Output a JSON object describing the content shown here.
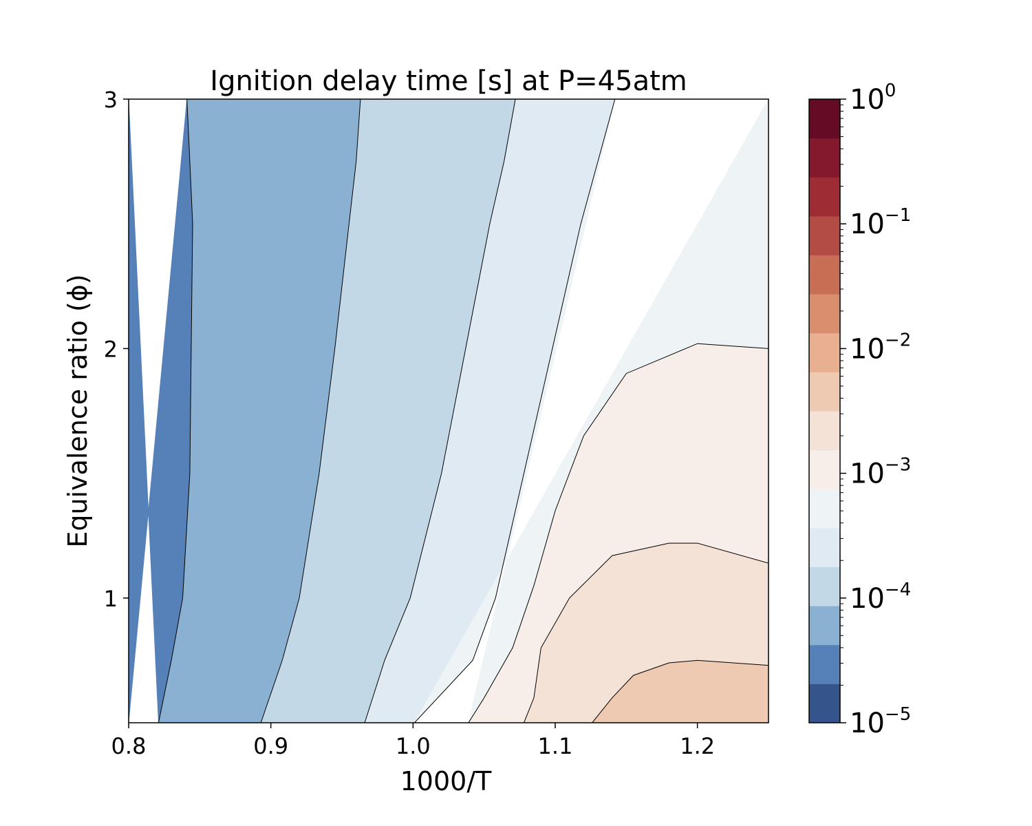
{
  "chart_data": {
    "type": "contour",
    "title": "Ignition delay time [s] at P=45atm",
    "xlabel": "1000/T",
    "ylabel": "Equivalence ratio (ϕ)",
    "xlim": [
      0.8,
      1.25
    ],
    "ylim": [
      0.5,
      3.0
    ],
    "x_ticks": [
      0.8,
      0.9,
      1.0,
      1.1,
      1.2
    ],
    "x_tick_labels": [
      "0.8",
      "0.9",
      "1.0",
      "1.1",
      "1.2"
    ],
    "y_ticks": [
      1,
      2,
      3
    ],
    "y_tick_labels": [
      "1",
      "2",
      "3"
    ],
    "colorbar": {
      "scale": "log",
      "range": [
        1e-05,
        1
      ],
      "levels": [
        1e-05,
        2.15e-05,
        4.64e-05,
        0.0001,
        0.000215,
        0.000464,
        0.001,
        0.00215,
        0.00464,
        0.01,
        0.0215,
        0.0464,
        0.1,
        0.215,
        0.464,
        1
      ],
      "colormap": "RdBu_r",
      "band_colors": [
        "#36548c",
        "#5580b8",
        "#8ab0d2",
        "#c3d8e7",
        "#e0eaf2",
        "#eef3f6",
        "#f7eeea",
        "#f4e2d6",
        "#efcab3",
        "#e8b090",
        "#d98f6e",
        "#c76e55",
        "#b24c44",
        "#9d2c34",
        "#84182c",
        "#660b25"
      ],
      "tick_bases": [
        "10",
        "10",
        "10",
        "10",
        "10",
        "10"
      ],
      "tick_exponents": [
        "0",
        "−1",
        "−2",
        "−3",
        "−4",
        "−5"
      ],
      "tick_values": [
        1,
        0.1,
        0.01,
        0.001,
        0.0001,
        1e-05
      ]
    },
    "contour_lines": [
      {
        "level": 0.0001,
        "points": [
          [
            0.841,
            3.0
          ],
          [
            0.843,
            2.75
          ],
          [
            0.845,
            2.5
          ],
          [
            0.844,
            2.0
          ],
          [
            0.843,
            1.5
          ],
          [
            0.838,
            1.0
          ],
          [
            0.83,
            0.75
          ],
          [
            0.821,
            0.5
          ]
        ]
      },
      {
        "level": 0.000215,
        "points": [
          [
            0.963,
            3.0
          ],
          [
            0.96,
            2.75
          ],
          [
            0.955,
            2.5
          ],
          [
            0.945,
            2.0
          ],
          [
            0.934,
            1.5
          ],
          [
            0.92,
            1.0
          ],
          [
            0.908,
            0.75
          ],
          [
            0.893,
            0.5
          ]
        ]
      },
      {
        "level": 0.000464,
        "points": [
          [
            1.072,
            3.0
          ],
          [
            1.064,
            2.75
          ],
          [
            1.054,
            2.5
          ],
          [
            1.037,
            2.0
          ],
          [
            1.02,
            1.5
          ],
          [
            0.998,
            1.0
          ],
          [
            0.98,
            0.75
          ],
          [
            0.966,
            0.5
          ]
        ]
      },
      {
        "level": 0.001,
        "points": [
          [
            1.142,
            3.0
          ],
          [
            1.13,
            2.75
          ],
          [
            1.118,
            2.5
          ],
          [
            1.098,
            2.0
          ],
          [
            1.078,
            1.5
          ],
          [
            1.058,
            1.0
          ],
          [
            1.042,
            0.75
          ],
          [
            1.001,
            0.5
          ]
        ]
      },
      {
        "level": 0.00215,
        "points": [
          [
            1.25,
            2.0
          ],
          [
            1.2,
            2.02
          ],
          [
            1.15,
            1.9
          ],
          [
            1.12,
            1.65
          ],
          [
            1.1,
            1.35
          ],
          [
            1.085,
            1.05
          ],
          [
            1.07,
            0.8
          ],
          [
            1.05,
            0.6
          ],
          [
            1.039,
            0.5
          ]
        ]
      },
      {
        "level": 0.00464,
        "points": [
          [
            1.25,
            1.14
          ],
          [
            1.2,
            1.22
          ],
          [
            1.18,
            1.22
          ],
          [
            1.14,
            1.17
          ],
          [
            1.11,
            1.0
          ],
          [
            1.09,
            0.8
          ],
          [
            1.085,
            0.6
          ],
          [
            1.078,
            0.5
          ]
        ]
      },
      {
        "level": 0.01,
        "points": [
          [
            1.25,
            0.73
          ],
          [
            1.2,
            0.75
          ],
          [
            1.18,
            0.74
          ],
          [
            1.155,
            0.69
          ],
          [
            1.14,
            0.6
          ],
          [
            1.126,
            0.5
          ]
        ]
      }
    ]
  }
}
